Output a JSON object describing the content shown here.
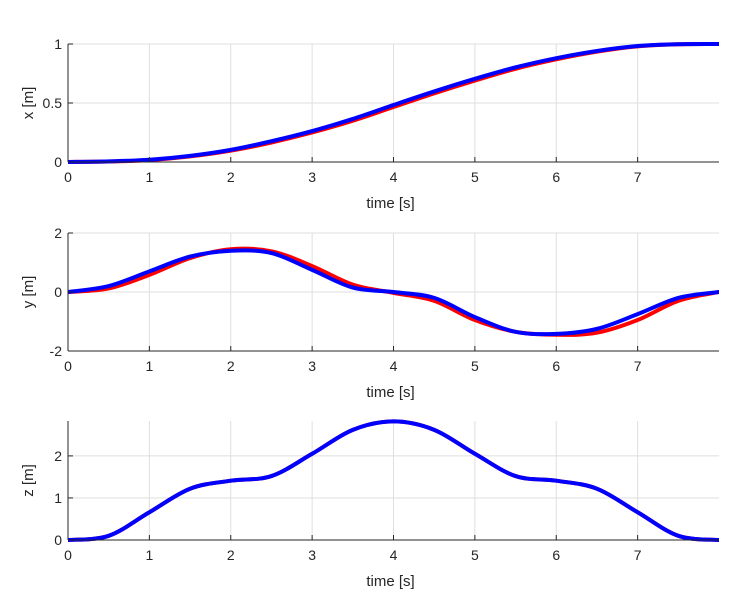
{
  "chart_data": [
    {
      "type": "line",
      "xlabel": "time [s]",
      "ylabel": "x [m]",
      "xlim": [
        0,
        8
      ],
      "ylim": [
        0,
        1
      ],
      "xticks": [
        0,
        1,
        2,
        3,
        4,
        5,
        6,
        7
      ],
      "yticks": [
        0,
        0.5,
        1
      ],
      "ytick_labels": [
        "0",
        "0.5",
        "1"
      ],
      "grid": true,
      "series": [
        {
          "color": "#ff0000",
          "x": [
            0,
            0.5,
            1,
            1.5,
            2,
            2.5,
            3,
            3.5,
            4,
            4.5,
            5,
            5.5,
            6,
            6.5,
            7,
            7.5,
            8
          ],
          "y": [
            0,
            0.004,
            0.016,
            0.047,
            0.096,
            0.165,
            0.25,
            0.35,
            0.466,
            0.582,
            0.69,
            0.79,
            0.87,
            0.935,
            0.98,
            0.998,
            1.0
          ]
        },
        {
          "color": "#0000ff",
          "x": [
            0,
            0.5,
            1,
            1.5,
            2,
            2.5,
            3,
            3.5,
            4,
            4.5,
            5,
            5.5,
            6,
            6.5,
            7,
            7.5,
            8
          ],
          "y": [
            0,
            0.005,
            0.019,
            0.052,
            0.103,
            0.176,
            0.262,
            0.365,
            0.483,
            0.598,
            0.705,
            0.802,
            0.88,
            0.941,
            0.983,
            0.998,
            1.0
          ]
        }
      ]
    },
    {
      "type": "line",
      "xlabel": "time [s]",
      "ylabel": "y [m]",
      "xlim": [
        0,
        8
      ],
      "ylim": [
        -2,
        2
      ],
      "xticks": [
        0,
        1,
        2,
        3,
        4,
        5,
        6,
        7
      ],
      "yticks": [
        -2,
        0,
        2
      ],
      "ytick_labels": [
        "-2",
        "0",
        "2"
      ],
      "grid": true,
      "series": [
        {
          "color": "#ff0000",
          "x": [
            0,
            0.5,
            1,
            1.5,
            2,
            2.5,
            3,
            3.5,
            4,
            4.5,
            5,
            5.5,
            6,
            6.5,
            7,
            7.5,
            8
          ],
          "y": [
            0,
            0.12,
            0.58,
            1.15,
            1.45,
            1.38,
            0.88,
            0.25,
            -0.03,
            -0.3,
            -0.95,
            -1.35,
            -1.45,
            -1.38,
            -0.95,
            -0.3,
            0
          ]
        },
        {
          "color": "#0000ff",
          "x": [
            0,
            0.5,
            1,
            1.5,
            2,
            2.5,
            3,
            3.5,
            4,
            4.5,
            5,
            5.5,
            6,
            6.5,
            7,
            7.5,
            8
          ],
          "y": [
            0,
            0.2,
            0.7,
            1.2,
            1.4,
            1.32,
            0.75,
            0.15,
            0,
            -0.2,
            -0.85,
            -1.35,
            -1.42,
            -1.25,
            -0.75,
            -0.2,
            0
          ]
        }
      ]
    },
    {
      "type": "line",
      "xlabel": "time [s]",
      "ylabel": "z [m]",
      "xlim": [
        0,
        8
      ],
      "ylim": [
        0,
        2.83
      ],
      "xticks": [
        0,
        1,
        2,
        3,
        4,
        5,
        6,
        7
      ],
      "yticks": [
        0,
        1,
        2
      ],
      "ytick_labels": [
        "0",
        "1",
        "2"
      ],
      "grid": true,
      "series": [
        {
          "color": "#ff0000",
          "x": [
            0,
            0.5,
            1,
            1.5,
            2,
            2.5,
            3,
            3.5,
            4,
            4.5,
            5,
            5.5,
            6,
            6.5,
            7,
            7.5,
            8
          ],
          "y": [
            0,
            0.1,
            0.66,
            1.22,
            1.41,
            1.52,
            2.05,
            2.62,
            2.82,
            2.62,
            2.05,
            1.52,
            1.41,
            1.22,
            0.66,
            0.1,
            0
          ]
        },
        {
          "color": "#0000ff",
          "x": [
            0,
            0.5,
            1,
            1.5,
            2,
            2.5,
            3,
            3.5,
            4,
            4.5,
            5,
            5.5,
            6,
            6.5,
            7,
            7.5,
            8
          ],
          "y": [
            0,
            0.1,
            0.66,
            1.22,
            1.41,
            1.52,
            2.05,
            2.62,
            2.82,
            2.62,
            2.05,
            1.52,
            1.41,
            1.22,
            0.66,
            0.1,
            0
          ]
        }
      ]
    }
  ]
}
